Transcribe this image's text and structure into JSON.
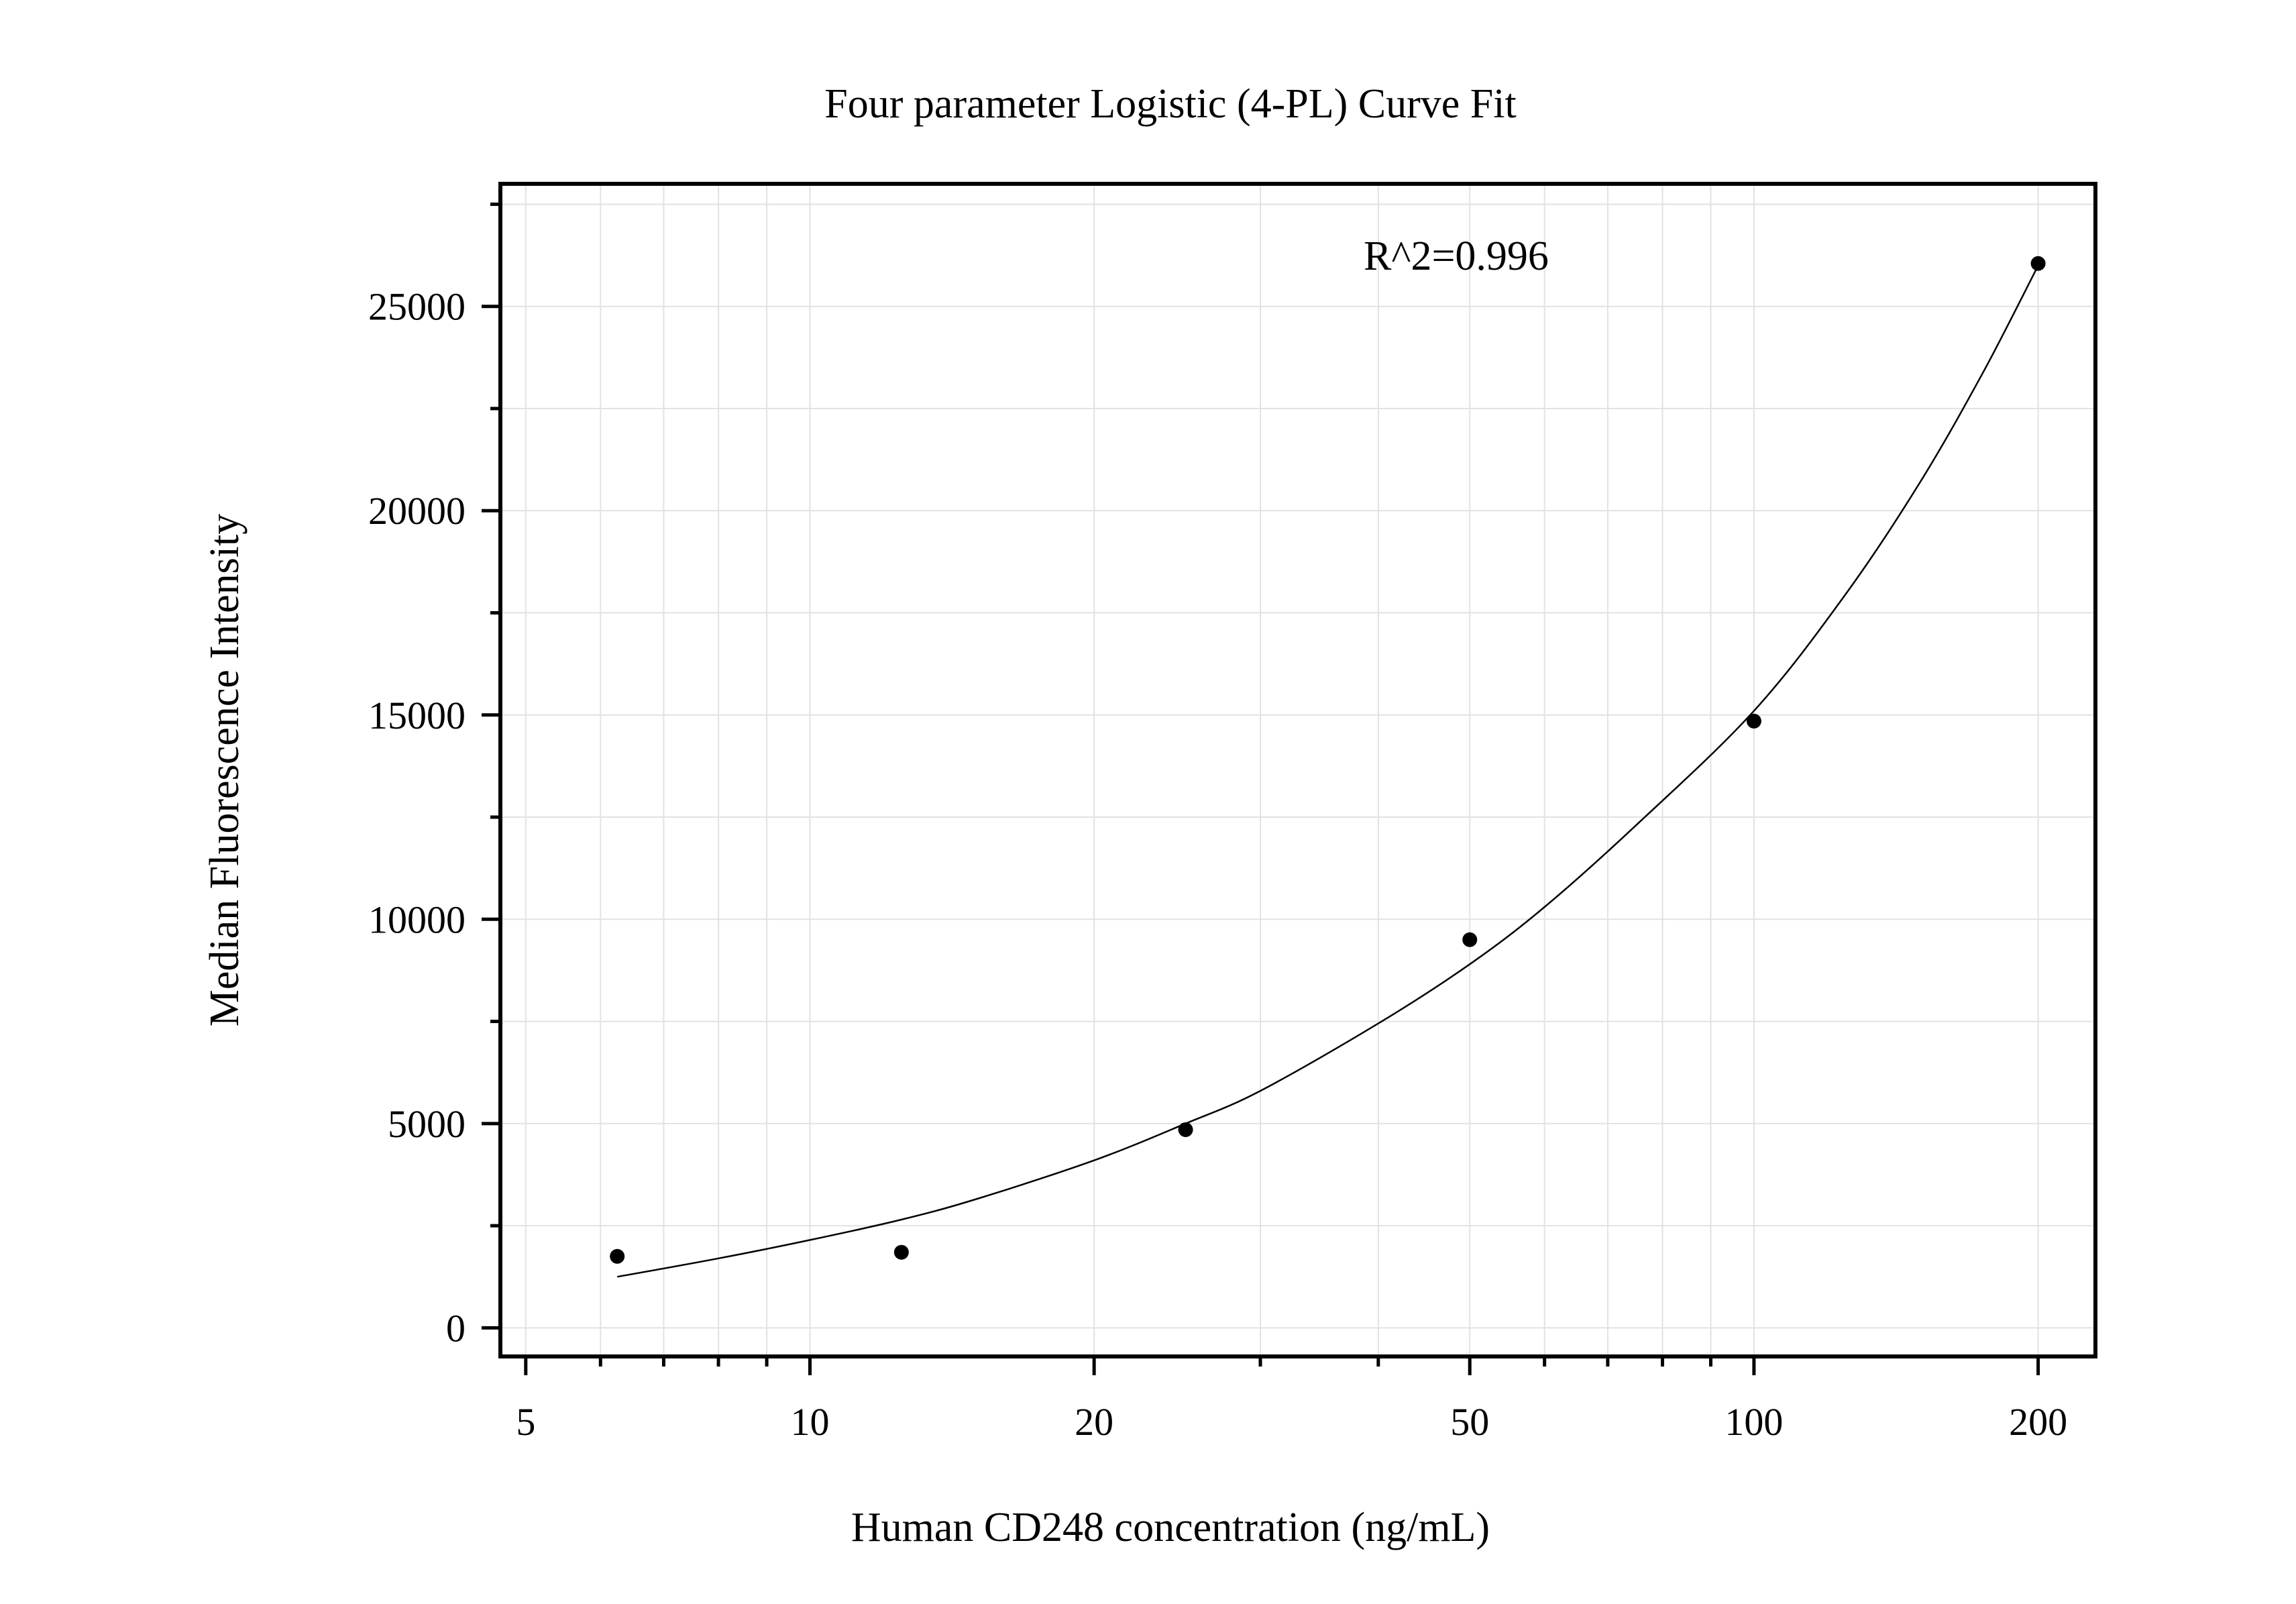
{
  "chart_data": {
    "type": "scatter",
    "title": "Four parameter Logistic (4-PL) Curve Fit",
    "xlabel": "Human CD248 concentration (ng/mL)",
    "ylabel": "Median Fluorescence Intensity",
    "annotation": "R^2=0.996",
    "x_scale": "log",
    "xlim": [
      4.7,
      230
    ],
    "ylim": [
      -700,
      28000
    ],
    "x_ticks": [
      5,
      10,
      20,
      50,
      100,
      200
    ],
    "x_tick_labels": [
      "5",
      "10",
      "20",
      "50",
      "100",
      "200"
    ],
    "y_ticks": [
      0,
      5000,
      10000,
      15000,
      20000,
      25000
    ],
    "y_tick_labels": [
      "0",
      "5000",
      "10000",
      "15000",
      "20000",
      "25000"
    ],
    "grid": true,
    "series": [
      {
        "kind": "points",
        "x": [
          6.25,
          12.5,
          25,
          50,
          100,
          200
        ],
        "y": [
          1750,
          1850,
          4850,
          9500,
          14850,
          26050
        ]
      },
      {
        "kind": "fit-curve",
        "x": [
          6.25,
          8,
          10,
          12.5,
          15,
          20,
          25,
          30,
          40,
          50,
          60,
          75,
          100,
          125,
          150,
          175,
          200
        ],
        "y": [
          1250,
          1700,
          2150,
          2650,
          3150,
          4100,
          5000,
          5800,
          7450,
          8900,
          10300,
          12300,
          15100,
          17950,
          20700,
          23400,
          26000
        ]
      }
    ],
    "colors": {
      "points": "#000000",
      "curve": "#000000",
      "grid": "#e2e2e2",
      "frame": "#000000"
    }
  }
}
